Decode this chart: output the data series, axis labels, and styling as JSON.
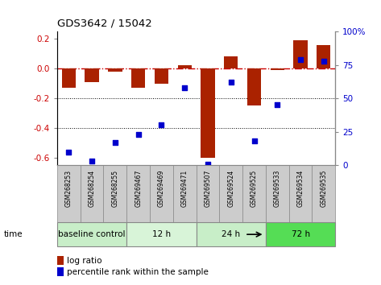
{
  "title": "GDS3642 / 15042",
  "samples": [
    "GSM268253",
    "GSM268254",
    "GSM268255",
    "GSM269467",
    "GSM269469",
    "GSM269471",
    "GSM269507",
    "GSM269524",
    "GSM269525",
    "GSM269533",
    "GSM269534",
    "GSM269535"
  ],
  "log_ratio": [
    -0.13,
    -0.09,
    -0.02,
    -0.13,
    -0.1,
    0.02,
    -0.6,
    0.08,
    -0.25,
    -0.01,
    0.19,
    0.16
  ],
  "percentile_rank": [
    10,
    3,
    17,
    23,
    30,
    58,
    1,
    62,
    18,
    45,
    79,
    78
  ],
  "groups": [
    {
      "label": "baseline control",
      "start": 0,
      "end": 3,
      "color": "#c8eec8"
    },
    {
      "label": "12 h",
      "start": 3,
      "end": 6,
      "color": "#d8f4d8"
    },
    {
      "label": "24 h",
      "start": 6,
      "end": 9,
      "color": "#c8eec8"
    },
    {
      "label": "72 h",
      "start": 9,
      "end": 12,
      "color": "#55dd55"
    }
  ],
  "bar_color": "#aa2200",
  "dot_color": "#0000cc",
  "ylim_left": [
    -0.65,
    0.25
  ],
  "ylim_right": [
    0,
    100
  ],
  "yticks_left": [
    -0.6,
    -0.4,
    -0.2,
    0.0,
    0.2
  ],
  "yticks_right": [
    0,
    25,
    50,
    75,
    100
  ],
  "hline_color": "#cc0000",
  "label_bg": "#cccccc",
  "label_edge": "#888888"
}
